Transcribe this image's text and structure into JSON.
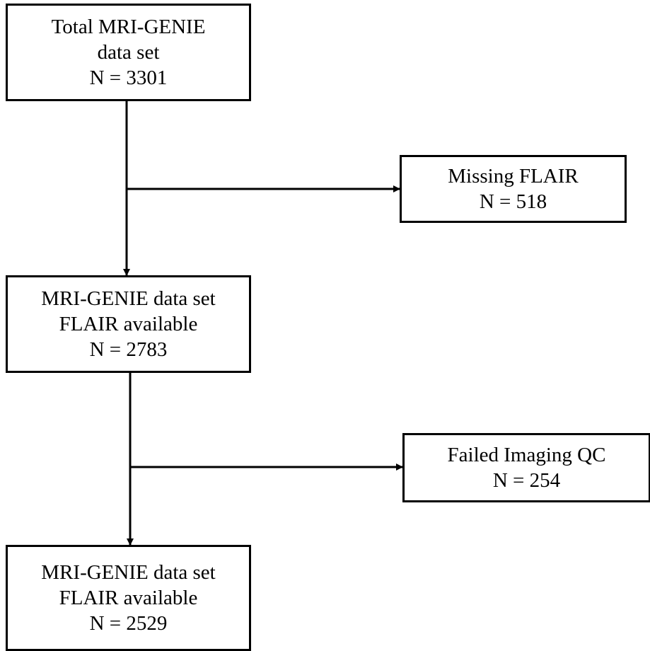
{
  "boxes": {
    "total": {
      "line1": "Total MRI-GENIE",
      "line2": "data set",
      "count": "N = 3301"
    },
    "missing_flair": {
      "line1": "Missing FLAIR",
      "count": "N = 518"
    },
    "flair_available": {
      "line1": "MRI-GENIE data set",
      "line2": "FLAIR available",
      "count": "N = 2783"
    },
    "failed_qc": {
      "line1": "Failed Imaging QC",
      "count": "N = 254"
    },
    "final": {
      "line1": "MRI-GENIE data set",
      "line2": "FLAIR available",
      "count": "N = 2529"
    }
  },
  "colors": {
    "line": "#000000",
    "background": "#ffffff"
  }
}
